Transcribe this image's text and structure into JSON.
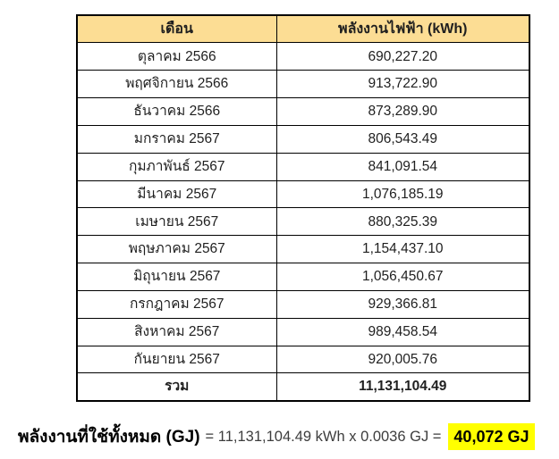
{
  "table": {
    "headers": [
      "เดือน",
      "พลังงานไฟฟ้า (kWh)"
    ],
    "rows": [
      {
        "month": "ตุลาคม 2566",
        "value": "690,227.20"
      },
      {
        "month": "พฤศจิกายน 2566",
        "value": "913,722.90"
      },
      {
        "month": "ธันวาคม 2566",
        "value": "873,289.90"
      },
      {
        "month": "มกราคม 2567",
        "value": "806,543.49"
      },
      {
        "month": "กุมภาพันธ์ 2567",
        "value": "841,091.54"
      },
      {
        "month": "มีนาคม 2567",
        "value": "1,076,185.19"
      },
      {
        "month": "เมษายน 2567",
        "value": "880,325.39"
      },
      {
        "month": "พฤษภาคม 2567",
        "value": "1,154,437.10"
      },
      {
        "month": "มิถุนายน 2567",
        "value": "1,056,450.67"
      },
      {
        "month": "กรกฎาคม 2567",
        "value": "929,366.81"
      },
      {
        "month": "สิงหาคม 2567",
        "value": "989,458.54"
      },
      {
        "month": "กันยายน 2567",
        "value": "920,005.76"
      }
    ],
    "total_label": "รวม",
    "total_value": "11,131,104.49"
  },
  "footer": {
    "label": "พลังงานที่ใช้ทั้งหมด (GJ)",
    "equation": "= 11,131,104.49 kWh x 0.0036 GJ =",
    "result": "40,072 GJ"
  },
  "colors": {
    "header_bg": "#FCDD94",
    "border": "#000000",
    "text": "#1F1F1F",
    "equation_text": "#3D3D3D",
    "highlight": "#FFFF00"
  }
}
